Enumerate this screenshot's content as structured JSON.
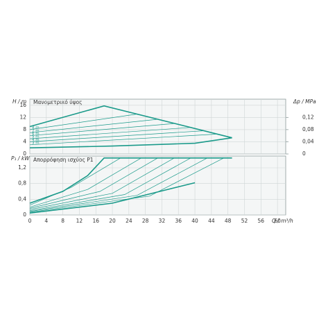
{
  "chart_data": [
    {
      "type": "line",
      "title": "Μανομετρικό ύψος",
      "ylabel": "H / m",
      "y2label": "Δp / MPa",
      "xlim": [
        0,
        62
      ],
      "ylim": [
        0,
        18
      ],
      "yticks": [
        0,
        4,
        8,
        12,
        16
      ],
      "y2lim": [
        0,
        0.18
      ],
      "y2ticks": [
        0,
        {
          "value": 0.04,
          "label": "0,04"
        },
        {
          "value": 0.08,
          "label": "0,08"
        },
        {
          "value": 0.12,
          "label": "0,12"
        }
      ],
      "grid": true,
      "series": [
        {
          "color": "#1a9a8a",
          "x": [
            0,
            18,
            49
          ],
          "values": [
            9,
            15.8,
            5.3
          ]
        },
        {
          "color": "#1a9a8a",
          "x": [
            0,
            20,
            40,
            49
          ],
          "values": [
            2,
            2.6,
            3.5,
            5.3
          ]
        },
        {
          "name": "8 m",
          "color": "#1a9a8a",
          "x": [
            0,
            26
          ],
          "values": [
            8,
            13.1
          ]
        },
        {
          "name": "7 m",
          "color": "#1a9a8a",
          "x": [
            0,
            31
          ],
          "values": [
            7,
            11.4
          ]
        },
        {
          "name": "6 m",
          "color": "#1a9a8a",
          "x": [
            0,
            35
          ],
          "values": [
            6,
            10
          ]
        },
        {
          "name": "5 m",
          "color": "#1a9a8a",
          "x": [
            0,
            39
          ],
          "values": [
            5,
            8.7
          ]
        },
        {
          "name": "4 m",
          "color": "#1a9a8a",
          "x": [
            0,
            42
          ],
          "values": [
            4,
            7.6
          ]
        },
        {
          "name": "3 m",
          "color": "#1a9a8a",
          "x": [
            0,
            45
          ],
          "values": [
            3,
            6.5
          ]
        }
      ]
    },
    {
      "type": "line",
      "title": "Απορρόφηση ισχύος P1",
      "ylabel": "P₁ / kW",
      "xlabel": "Q / m³/h",
      "xlim": [
        0,
        62
      ],
      "ylim": [
        0,
        1.5
      ],
      "yticks": [
        0,
        {
          "value": 0.4,
          "label": "0,4"
        },
        {
          "value": 0.8,
          "label": "0,8"
        },
        {
          "value": 1.2,
          "label": "1,2"
        }
      ],
      "xticks": [
        0,
        4,
        8,
        12,
        16,
        20,
        24,
        28,
        32,
        36,
        40,
        44,
        48,
        52,
        56,
        60
      ],
      "grid": true,
      "series": [
        {
          "color": "#1a9a8a",
          "x": [
            0,
            8,
            14,
            18,
            49
          ],
          "values": [
            0.3,
            0.6,
            1.0,
            1.45,
            1.45
          ]
        },
        {
          "color": "#1a9a8a",
          "x": [
            0,
            20,
            40
          ],
          "values": [
            0.05,
            0.3,
            0.82
          ]
        },
        {
          "color": "#1a9a8a",
          "x": [
            0,
            10,
            22
          ],
          "values": [
            0.25,
            0.7,
            1.45
          ]
        },
        {
          "color": "#1a9a8a",
          "x": [
            0,
            14,
            27
          ],
          "values": [
            0.2,
            0.65,
            1.45
          ]
        },
        {
          "color": "#1a9a8a",
          "x": [
            0,
            17,
            31
          ],
          "values": [
            0.17,
            0.6,
            1.45
          ]
        },
        {
          "color": "#1a9a8a",
          "x": [
            0,
            20,
            35
          ],
          "values": [
            0.14,
            0.55,
            1.45
          ]
        },
        {
          "color": "#1a9a8a",
          "x": [
            0,
            23,
            39
          ],
          "values": [
            0.11,
            0.52,
            1.45
          ]
        },
        {
          "color": "#1a9a8a",
          "x": [
            0,
            26,
            43
          ],
          "values": [
            0.09,
            0.5,
            1.45
          ]
        },
        {
          "color": "#1a9a8a",
          "x": [
            0,
            29,
            47
          ],
          "values": [
            0.07,
            0.48,
            1.45
          ]
        }
      ]
    }
  ]
}
